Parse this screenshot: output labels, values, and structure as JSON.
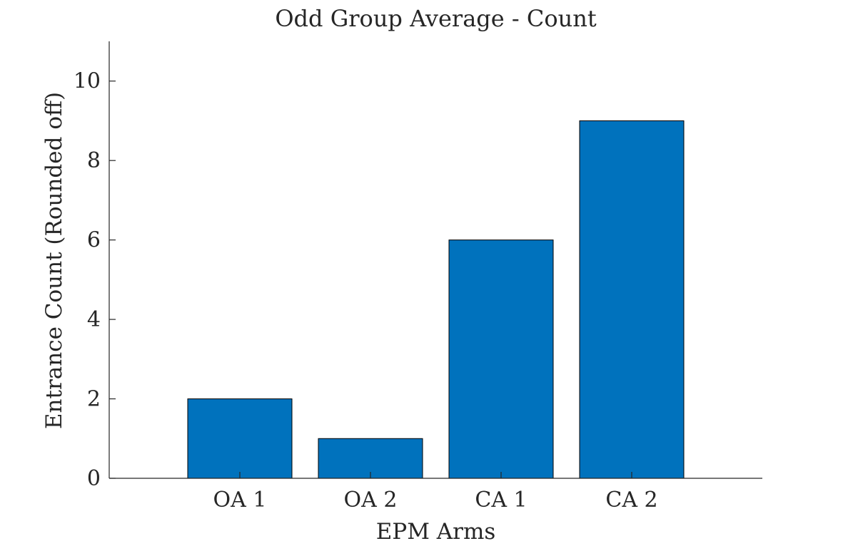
{
  "chart_data": {
    "type": "bar",
    "title": "Odd Group Average - Count",
    "xlabel": "EPM Arms",
    "ylabel": "Entrance Count (Rounded off)",
    "categories": [
      "OA 1",
      "OA 2",
      "CA 1",
      "CA 2"
    ],
    "values": [
      2,
      1,
      6,
      9
    ],
    "ylim": [
      0,
      11
    ],
    "yticks": [
      0,
      2,
      4,
      6,
      8,
      10
    ],
    "ytick_labels": [
      "0",
      "2",
      "4",
      "6",
      "8",
      "10"
    ],
    "grid": false,
    "legend": "none",
    "bar_color": "#0072BD"
  }
}
